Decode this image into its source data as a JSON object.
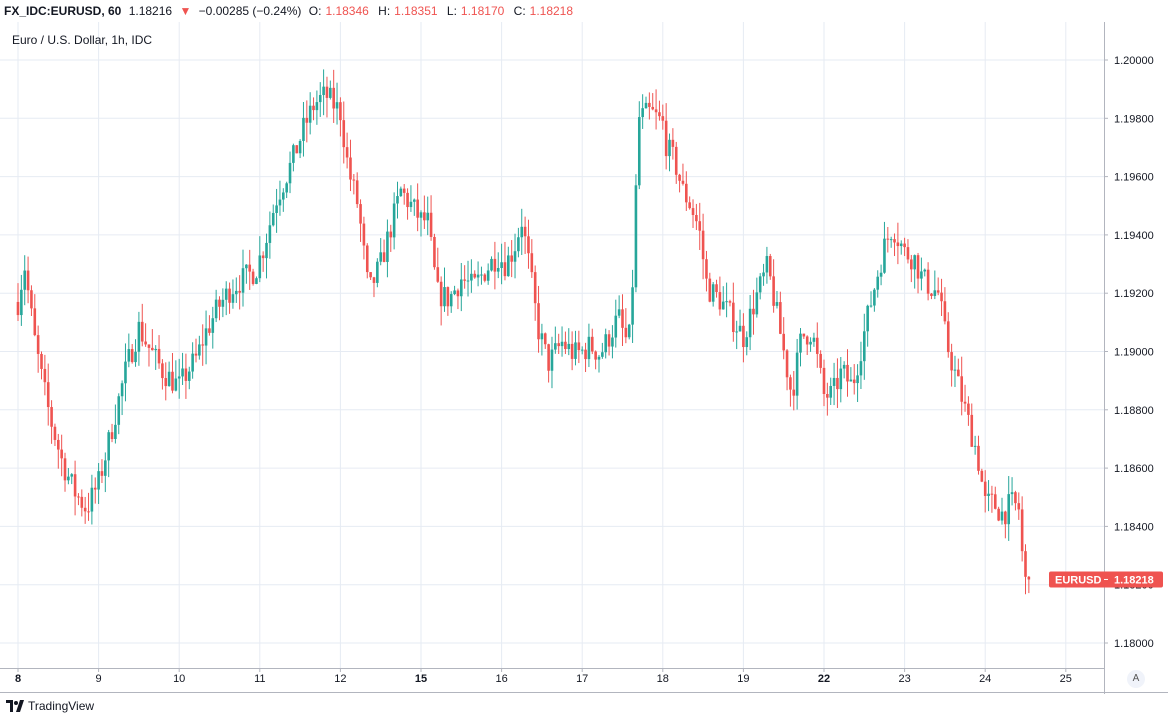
{
  "header": {
    "symbol": "FX_IDC:EURUSD, 60",
    "last": "1.18216",
    "change_arrow": "▼",
    "change": "−0.00285 (−0.24%)",
    "o_label": "O:",
    "o_value": "1.18346",
    "h_label": "H:",
    "h_value": "1.18351",
    "l_label": "L:",
    "l_value": "1.18170",
    "c_label": "C:",
    "c_value": "1.18218"
  },
  "description": "Euro / U.S. Dollar, 1h, IDC",
  "price_tag": {
    "symbol": "EURUSD",
    "value": "1.18218"
  },
  "footer": {
    "brand": "TradingView",
    "auto_label": "A"
  },
  "colors": {
    "up": "#26a69a",
    "down": "#ef5350",
    "grid": "#e6ebf3",
    "axis_text": "#131722",
    "tag_bg": "#ef5350"
  },
  "chart_data": {
    "type": "candlestick",
    "title": "Euro / U.S. Dollar, 1h, IDC",
    "x_ticks": [
      {
        "label": "8",
        "pos": 0,
        "bold": true
      },
      {
        "label": "9",
        "pos": 1,
        "bold": false
      },
      {
        "label": "10",
        "pos": 2,
        "bold": false
      },
      {
        "label": "11",
        "pos": 3,
        "bold": false
      },
      {
        "label": "12",
        "pos": 4,
        "bold": false
      },
      {
        "label": "15",
        "pos": 5,
        "bold": true
      },
      {
        "label": "16",
        "pos": 6,
        "bold": false
      },
      {
        "label": "17",
        "pos": 7,
        "bold": false
      },
      {
        "label": "18",
        "pos": 8,
        "bold": false
      },
      {
        "label": "19",
        "pos": 9,
        "bold": false
      },
      {
        "label": "22",
        "pos": 10,
        "bold": true
      },
      {
        "label": "23",
        "pos": 11,
        "bold": false
      },
      {
        "label": "24",
        "pos": 12,
        "bold": false
      },
      {
        "label": "25",
        "pos": 13,
        "bold": false
      }
    ],
    "y_ticks": [
      "1.20000",
      "1.19800",
      "1.19600",
      "1.19400",
      "1.19200",
      "1.19000",
      "1.18800",
      "1.18600",
      "1.18400",
      "1.18200",
      "1.18000"
    ],
    "ylim": [
      1.1796,
      1.2018
    ],
    "xlim": [
      -0.15,
      14.2
    ],
    "close_path": [
      [
        0.0,
        1.1917
      ],
      [
        0.08,
        1.193
      ],
      [
        0.2,
        1.1905
      ],
      [
        0.3,
        1.189
      ],
      [
        0.4,
        1.1877
      ],
      [
        0.55,
        1.1862
      ],
      [
        0.7,
        1.1852
      ],
      [
        0.85,
        1.1846
      ],
      [
        1.0,
        1.1855
      ],
      [
        1.1,
        1.1866
      ],
      [
        1.22,
        1.188
      ],
      [
        1.35,
        1.1895
      ],
      [
        1.5,
        1.1908
      ],
      [
        1.65,
        1.19
      ],
      [
        1.8,
        1.1893
      ],
      [
        2.0,
        1.1888
      ],
      [
        2.1,
        1.1893
      ],
      [
        2.22,
        1.1898
      ],
      [
        2.32,
        1.1906
      ],
      [
        2.48,
        1.1915
      ],
      [
        2.65,
        1.1922
      ],
      [
        2.8,
        1.1925
      ],
      [
        2.95,
        1.1928
      ],
      [
        3.05,
        1.1936
      ],
      [
        3.2,
        1.1952
      ],
      [
        3.4,
        1.1965
      ],
      [
        3.55,
        1.1977
      ],
      [
        3.68,
        1.1985
      ],
      [
        3.82,
        1.1988
      ],
      [
        4.0,
        1.1982
      ],
      [
        4.1,
        1.1962
      ],
      [
        4.22,
        1.195
      ],
      [
        4.35,
        1.192
      ],
      [
        4.5,
        1.193
      ],
      [
        4.62,
        1.1942
      ],
      [
        4.75,
        1.1955
      ],
      [
        4.88,
        1.195
      ],
      [
        5.0,
        1.1945
      ],
      [
        5.08,
        1.1945
      ],
      [
        5.2,
        1.192
      ],
      [
        5.35,
        1.1918
      ],
      [
        5.5,
        1.1925
      ],
      [
        5.65,
        1.1922
      ],
      [
        5.8,
        1.1928
      ],
      [
        5.95,
        1.1933
      ],
      [
        6.05,
        1.193
      ],
      [
        6.15,
        1.1935
      ],
      [
        6.25,
        1.1945
      ],
      [
        6.35,
        1.1928
      ],
      [
        6.45,
        1.1908
      ],
      [
        6.58,
        1.1896
      ],
      [
        6.75,
        1.1903
      ],
      [
        6.9,
        1.1899
      ],
      [
        7.0,
        1.19
      ],
      [
        7.1,
        1.1902
      ],
      [
        7.22,
        1.1899
      ],
      [
        7.35,
        1.1906
      ],
      [
        7.45,
        1.1912
      ],
      [
        7.53,
        1.1904
      ],
      [
        7.6,
        1.1905
      ],
      [
        7.7,
        1.198
      ],
      [
        7.85,
        1.1982
      ],
      [
        8.0,
        1.1978
      ],
      [
        8.05,
        1.197
      ],
      [
        8.15,
        1.1965
      ],
      [
        8.25,
        1.1955
      ],
      [
        8.35,
        1.195
      ],
      [
        8.45,
        1.1942
      ],
      [
        8.55,
        1.1922
      ],
      [
        8.7,
        1.1918
      ],
      [
        8.85,
        1.1912
      ],
      [
        9.0,
        1.1905
      ],
      [
        9.15,
        1.1918
      ],
      [
        9.3,
        1.1929
      ],
      [
        9.4,
        1.1915
      ],
      [
        9.5,
        1.19
      ],
      [
        9.6,
        1.1885
      ],
      [
        9.72,
        1.1905
      ],
      [
        9.85,
        1.1907
      ],
      [
        10.0,
        1.1885
      ],
      [
        10.1,
        1.1885
      ],
      [
        10.22,
        1.1893
      ],
      [
        10.35,
        1.1888
      ],
      [
        10.45,
        1.19
      ],
      [
        10.55,
        1.1913
      ],
      [
        10.65,
        1.1925
      ],
      [
        10.75,
        1.1936
      ],
      [
        10.85,
        1.1943
      ],
      [
        11.0,
        1.1934
      ],
      [
        11.12,
        1.1932
      ],
      [
        11.22,
        1.1925
      ],
      [
        11.32,
        1.1922
      ],
      [
        11.42,
        1.192
      ],
      [
        11.52,
        1.1903
      ],
      [
        11.65,
        1.189
      ],
      [
        11.78,
        1.1877
      ],
      [
        11.9,
        1.1865
      ],
      [
        12.0,
        1.1848
      ],
      [
        12.1,
        1.1848
      ],
      [
        12.22,
        1.1844
      ],
      [
        12.32,
        1.1848
      ],
      [
        12.42,
        1.1846
      ],
      [
        12.48,
        1.1822
      ],
      [
        12.54,
        1.1818
      ],
      [
        12.58,
        1.1822
      ]
    ],
    "last_price": 1.18218
  }
}
